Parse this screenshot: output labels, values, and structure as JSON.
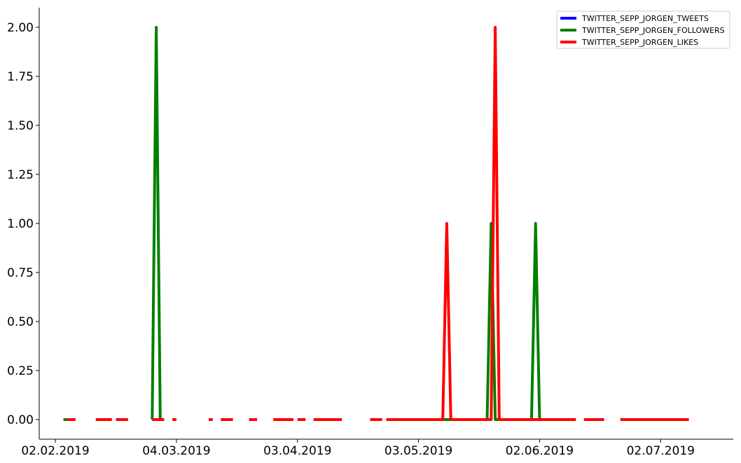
{
  "chart_data": {
    "type": "line",
    "title": "",
    "xlabel": "",
    "ylabel": "",
    "xlim": [
      "2019-01-29",
      "2019-07-20"
    ],
    "ylim": [
      -0.1,
      2.1
    ],
    "x_ticks": [
      {
        "date": "2019-02-02",
        "label": "02.02.2019"
      },
      {
        "date": "2019-03-04",
        "label": "04.03.2019"
      },
      {
        "date": "2019-04-03",
        "label": "03.04.2019"
      },
      {
        "date": "2019-05-03",
        "label": "03.05.2019"
      },
      {
        "date": "2019-06-02",
        "label": "02.06.2019"
      },
      {
        "date": "2019-07-02",
        "label": "02.07.2019"
      }
    ],
    "y_ticks": [
      {
        "value": 0.0,
        "label": "0.00"
      },
      {
        "value": 0.25,
        "label": "0.25"
      },
      {
        "value": 0.5,
        "label": "0.50"
      },
      {
        "value": 0.75,
        "label": "0.75"
      },
      {
        "value": 1.0,
        "label": "1.00"
      },
      {
        "value": 1.25,
        "label": "1.25"
      },
      {
        "value": 1.5,
        "label": "1.50"
      },
      {
        "value": 1.75,
        "label": "1.75"
      },
      {
        "value": 2.0,
        "label": "2.00"
      }
    ],
    "grid": false,
    "legend_position": "top-right",
    "series": [
      {
        "name": "TWITTER_SEPP_JORGEN_TWEETS",
        "color": "#0000ff",
        "segments": []
      },
      {
        "name": "TWITTER_SEPP_JORGEN_FOLLOWERS",
        "color": "#008000",
        "segments": [
          [
            [
              "2019-02-04",
              0
            ],
            [
              "2019-02-05",
              0
            ]
          ],
          [
            [
              "2019-02-26",
              0
            ],
            [
              "2019-02-27",
              2
            ],
            [
              "2019-02-28",
              0
            ]
          ],
          [
            [
              "2019-05-09",
              0
            ],
            [
              "2019-05-20",
              0
            ],
            [
              "2019-05-21",
              1
            ],
            [
              "2019-05-22",
              0
            ],
            [
              "2019-05-31",
              0
            ],
            [
              "2019-06-01",
              1
            ],
            [
              "2019-06-02",
              0
            ],
            [
              "2019-06-03",
              0
            ]
          ]
        ]
      },
      {
        "name": "TWITTER_SEPP_JORGEN_LIKES",
        "color": "#ff0000",
        "segments": [
          [
            [
              "2019-02-05",
              0
            ],
            [
              "2019-02-07",
              0
            ]
          ],
          [
            [
              "2019-02-12",
              0
            ],
            [
              "2019-02-16",
              0
            ]
          ],
          [
            [
              "2019-02-17",
              0
            ],
            [
              "2019-02-20",
              0
            ]
          ],
          [
            [
              "2019-02-26",
              0
            ],
            [
              "2019-03-01",
              0
            ]
          ],
          [
            [
              "2019-03-03",
              0
            ],
            [
              "2019-03-04",
              0
            ]
          ],
          [
            [
              "2019-03-12",
              0
            ],
            [
              "2019-03-13",
              0
            ]
          ],
          [
            [
              "2019-03-15",
              0
            ],
            [
              "2019-03-18",
              0
            ]
          ],
          [
            [
              "2019-03-22",
              0
            ],
            [
              "2019-03-24",
              0
            ]
          ],
          [
            [
              "2019-03-28",
              0
            ],
            [
              "2019-04-02",
              0
            ]
          ],
          [
            [
              "2019-04-03",
              0
            ],
            [
              "2019-04-05",
              0
            ]
          ],
          [
            [
              "2019-04-07",
              0
            ],
            [
              "2019-04-14",
              0
            ]
          ],
          [
            [
              "2019-04-21",
              0
            ],
            [
              "2019-04-24",
              0
            ]
          ],
          [
            [
              "2019-04-25",
              0
            ],
            [
              "2019-05-09",
              0
            ],
            [
              "2019-05-10",
              1
            ],
            [
              "2019-05-11",
              0
            ],
            [
              "2019-05-21",
              0
            ],
            [
              "2019-05-22",
              2
            ],
            [
              "2019-05-23",
              0
            ],
            [
              "2019-06-11",
              0
            ]
          ],
          [
            [
              "2019-06-13",
              0
            ],
            [
              "2019-06-18",
              0
            ]
          ],
          [
            [
              "2019-06-22",
              0
            ],
            [
              "2019-07-09",
              0
            ]
          ]
        ]
      }
    ]
  }
}
